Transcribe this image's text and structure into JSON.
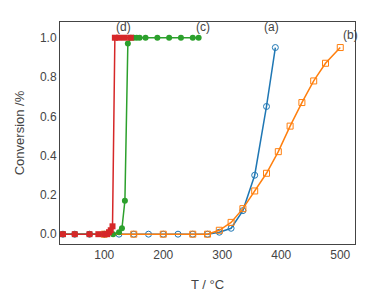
{
  "chart_data": {
    "type": "line",
    "xlabel": "T / °C",
    "ylabel": "Conversion /%",
    "xlim": [
      25,
      525
    ],
    "ylim": [
      -0.05,
      1.08
    ],
    "xticks": [
      100,
      200,
      300,
      400,
      500
    ],
    "yticks": [
      {
        "value": 0.0,
        "label": "0.0"
      },
      0.2,
      0.4,
      0.6,
      0.8,
      {
        "value": 1.0,
        "label": "1.0"
      }
    ],
    "grid": false,
    "series": [
      {
        "marker": "circle-open",
        "x": [
          30,
          50,
          75,
          100,
          125,
          150,
          175,
          200,
          225,
          250,
          275,
          295,
          315,
          335,
          355,
          375,
          390
        ],
        "values": [
          0.0,
          0.0,
          0.0,
          0.0,
          0.0,
          0.0,
          0.0,
          0.0,
          0.0,
          0.0,
          0.0,
          0.01,
          0.03,
          0.12,
          0.3,
          0.65,
          0.95
        ]
      },
      {
        "marker": "square-open",
        "x": [
          100,
          150,
          200,
          250,
          275,
          295,
          315,
          335,
          355,
          375,
          395,
          415,
          435,
          455,
          475,
          500
        ],
        "values": [
          0.0,
          0.0,
          0.0,
          0.0,
          0.0,
          0.02,
          0.06,
          0.13,
          0.22,
          0.31,
          0.42,
          0.55,
          0.67,
          0.78,
          0.87,
          0.95
        ]
      },
      {
        "marker": "circle",
        "x": [
          30,
          50,
          75,
          100,
          115,
          125,
          130,
          135,
          140,
          145,
          150,
          155,
          160,
          170,
          190,
          210,
          230,
          250,
          260
        ],
        "values": [
          0.0,
          0.0,
          0.0,
          0.0,
          0.0,
          0.01,
          0.03,
          0.17,
          0.97,
          1.0,
          1.0,
          1.0,
          1.0,
          1.0,
          1.0,
          1.0,
          1.0,
          1.0,
          1.0
        ]
      },
      {
        "marker": "square",
        "x": [
          30,
          50,
          75,
          90,
          100,
          105,
          108,
          111,
          114,
          118,
          125,
          135,
          145
        ],
        "values": [
          0.0,
          0.0,
          0.0,
          0.0,
          0.0,
          0.0,
          0.01,
          0.02,
          0.04,
          1.0,
          1.0,
          1.0,
          1.0
        ]
      }
    ],
    "annotations": [
      {
        "text": "(a)",
        "x": 368,
        "y": 1.01
      },
      {
        "text": "(b)",
        "x": 502,
        "y": 0.97
      },
      {
        "text": "(c)",
        "x": 252,
        "y": 1.01
      },
      {
        "text": "(d)",
        "x": 116,
        "y": 1.01
      }
    ]
  }
}
